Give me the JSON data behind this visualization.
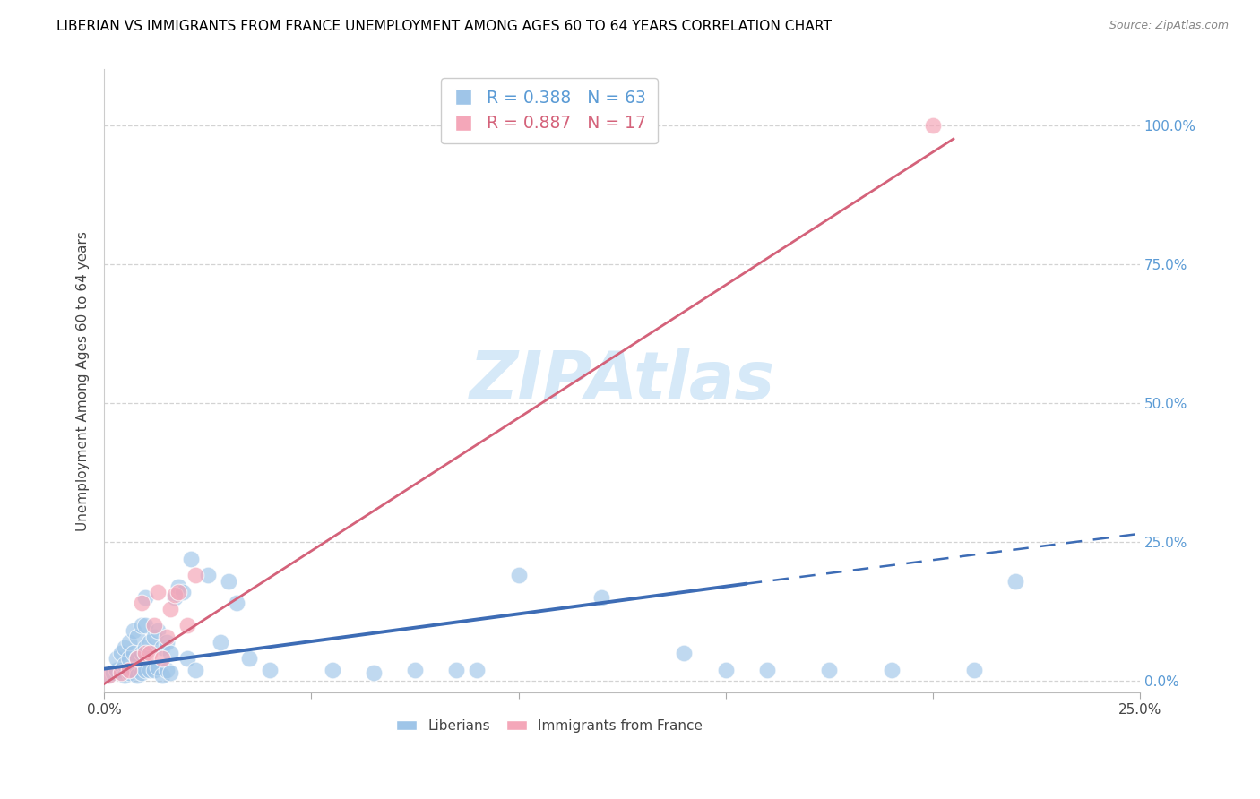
{
  "title": "LIBERIAN VS IMMIGRANTS FROM FRANCE UNEMPLOYMENT AMONG AGES 60 TO 64 YEARS CORRELATION CHART",
  "source": "Source: ZipAtlas.com",
  "ylabel": "Unemployment Among Ages 60 to 64 years",
  "ytick_labels": [
    "0.0%",
    "25.0%",
    "50.0%",
    "75.0%",
    "100.0%"
  ],
  "ytick_values": [
    0.0,
    0.25,
    0.5,
    0.75,
    1.0
  ],
  "xtick_values": [
    0.0,
    0.05,
    0.1,
    0.15,
    0.2,
    0.25
  ],
  "xtick_labels": [
    "0.0%",
    "",
    "",
    "",
    "",
    "25.0%"
  ],
  "xmin": 0.0,
  "xmax": 0.25,
  "ymin": -0.02,
  "ymax": 1.1,
  "legend_label_1": "Liberians",
  "legend_label_2": "Immigrants from France",
  "R1": "0.388",
  "N1": "63",
  "R2": "0.887",
  "N2": "17",
  "color_blue": "#9fc5e8",
  "color_pink": "#f4a7b9",
  "color_blue_line": "#3d6cb5",
  "color_pink_line": "#d4627a",
  "watermark_color": "#d6e9f8",
  "liberians_x": [
    0.001,
    0.002,
    0.003,
    0.003,
    0.004,
    0.004,
    0.005,
    0.005,
    0.005,
    0.006,
    0.006,
    0.006,
    0.007,
    0.007,
    0.007,
    0.008,
    0.008,
    0.008,
    0.009,
    0.009,
    0.009,
    0.01,
    0.01,
    0.01,
    0.01,
    0.011,
    0.011,
    0.012,
    0.012,
    0.013,
    0.013,
    0.014,
    0.014,
    0.015,
    0.015,
    0.016,
    0.016,
    0.017,
    0.018,
    0.019,
    0.02,
    0.021,
    0.022,
    0.025,
    0.028,
    0.03,
    0.032,
    0.035,
    0.04,
    0.055,
    0.065,
    0.075,
    0.085,
    0.09,
    0.1,
    0.12,
    0.14,
    0.15,
    0.16,
    0.175,
    0.19,
    0.21,
    0.22
  ],
  "liberians_y": [
    0.01,
    0.015,
    0.02,
    0.04,
    0.02,
    0.05,
    0.01,
    0.03,
    0.06,
    0.015,
    0.04,
    0.07,
    0.02,
    0.05,
    0.09,
    0.01,
    0.04,
    0.08,
    0.015,
    0.05,
    0.1,
    0.02,
    0.06,
    0.1,
    0.15,
    0.02,
    0.07,
    0.02,
    0.08,
    0.025,
    0.09,
    0.01,
    0.06,
    0.02,
    0.07,
    0.015,
    0.05,
    0.15,
    0.17,
    0.16,
    0.04,
    0.22,
    0.02,
    0.19,
    0.07,
    0.18,
    0.14,
    0.04,
    0.02,
    0.02,
    0.015,
    0.02,
    0.02,
    0.02,
    0.19,
    0.15,
    0.05,
    0.02,
    0.02,
    0.02,
    0.02,
    0.02,
    0.18
  ],
  "france_x": [
    0.001,
    0.004,
    0.006,
    0.008,
    0.009,
    0.01,
    0.011,
    0.012,
    0.013,
    0.014,
    0.015,
    0.016,
    0.017,
    0.018,
    0.02,
    0.022,
    0.2
  ],
  "france_y": [
    0.01,
    0.015,
    0.02,
    0.04,
    0.14,
    0.05,
    0.05,
    0.1,
    0.16,
    0.04,
    0.08,
    0.13,
    0.155,
    0.16,
    0.1,
    0.19,
    1.0
  ],
  "blue_line_x0": 0.0,
  "blue_line_x1": 0.155,
  "blue_line_x2": 0.25,
  "blue_line_y0": 0.022,
  "blue_line_y1": 0.175,
  "blue_line_y2": 0.265,
  "pink_line_x0": 0.0,
  "pink_line_x1": 0.205,
  "pink_line_y0": -0.005,
  "pink_line_y1": 0.975
}
